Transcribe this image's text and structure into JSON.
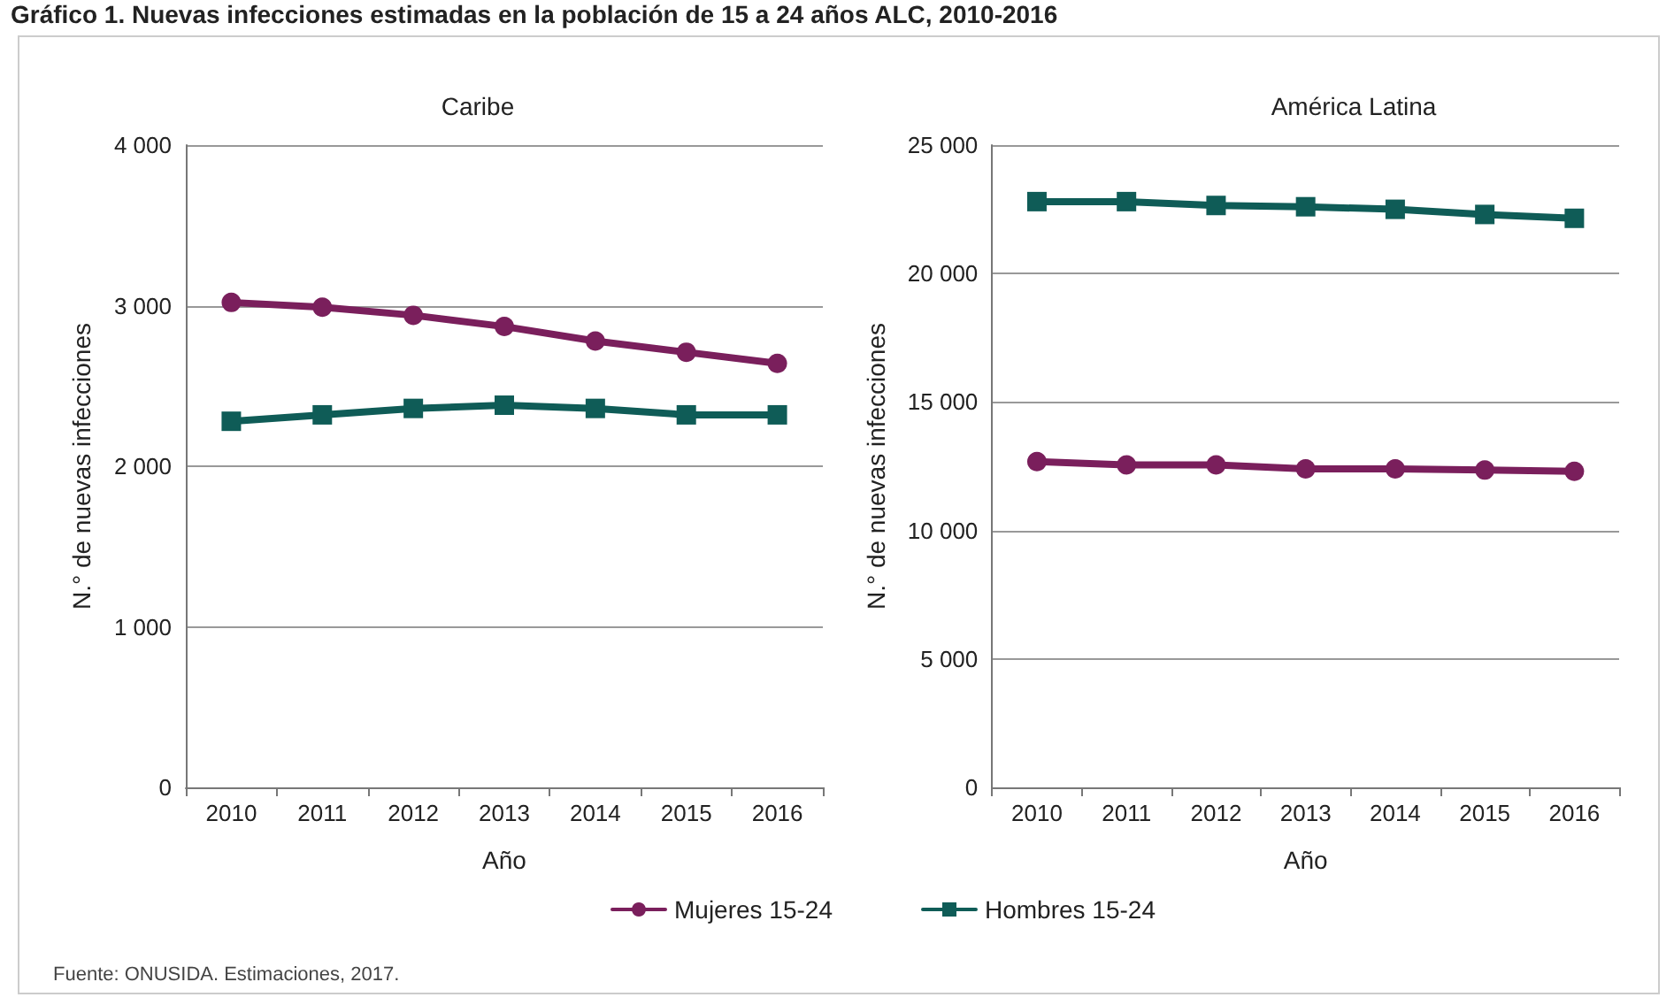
{
  "chart_data": [
    {
      "type": "line",
      "title": "Caribe",
      "xlabel": "Año",
      "ylabel": "N.° de nuevas infecciones",
      "annotations": [
        "Gráfico 1. Nuevas infecciones estimadas en la población de 15 a 24 años ALC, 2010-2016",
        "Fuente: ONUSIDA. Estimaciones, 2017."
      ],
      "categories": [
        "2010",
        "2011",
        "2012",
        "2013",
        "2014",
        "2015",
        "2016"
      ],
      "series": [
        {
          "name": "Mujeres 15-24",
          "color": "#7a1f5c",
          "marker": "circle",
          "values": [
            3020,
            2990,
            2940,
            2870,
            2780,
            2710,
            2640
          ]
        },
        {
          "name": "Hombres 15-24",
          "color": "#0f5c57",
          "marker": "square",
          "values": [
            2280,
            2320,
            2360,
            2380,
            2360,
            2320,
            2320
          ]
        }
      ],
      "ylim": [
        0,
        4000
      ],
      "yticks": [
        0,
        {
          "value": 1000,
          "label": "1 000"
        },
        {
          "value": 2000,
          "label": "2 000"
        },
        {
          "value": 3000,
          "label": "3 000"
        },
        {
          "value": 4000,
          "label": "4 000"
        }
      ],
      "grid": "y",
      "legend": "bottom"
    },
    {
      "type": "line",
      "title": "América Latina",
      "xlabel": "Año",
      "ylabel": "N.° de nuevas infecciones",
      "categories": [
        "2010",
        "2011",
        "2012",
        "2013",
        "2014",
        "2015",
        "2016"
      ],
      "series": [
        {
          "color": "#7a1f5c",
          "marker": "circle",
          "values": [
            12680,
            12550,
            12550,
            12400,
            12400,
            12350,
            12300
          ]
        },
        {
          "color": "#0f5c57",
          "marker": "square",
          "values": [
            22800,
            22800,
            22650,
            22600,
            22500,
            22300,
            22150
          ]
        }
      ],
      "ylim": [
        0,
        25000
      ],
      "yticks": [
        0,
        {
          "value": 5000,
          "label": "5 000"
        },
        {
          "value": 10000,
          "label": "10 000"
        },
        {
          "value": 15000,
          "label": "15 000"
        },
        {
          "value": 20000,
          "label": "20 000"
        },
        {
          "value": 25000,
          "label": "25 000"
        }
      ],
      "grid": "y"
    }
  ]
}
